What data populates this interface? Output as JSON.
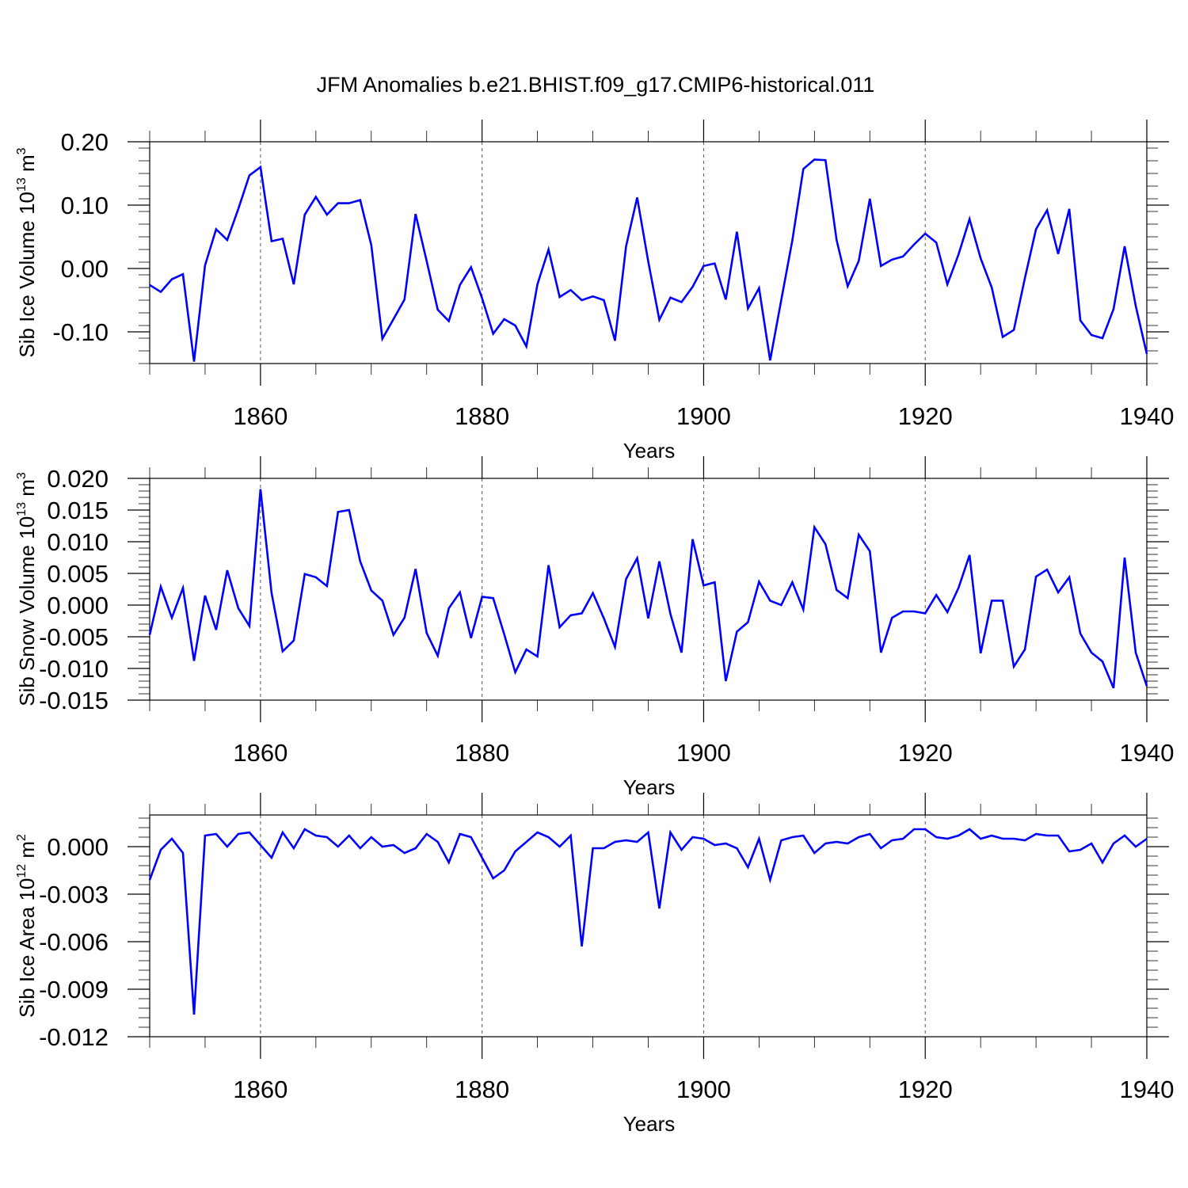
{
  "title": "JFM Anomalies b.e21.BHIST.f09_g17.CMIP6-historical.011",
  "colors": {
    "line": "#0000ff",
    "axis": "#000000",
    "grid": "#555555"
  },
  "chart_data": [
    {
      "type": "line",
      "title": "JFM Anomalies b.e21.BHIST.f09_g17.CMIP6-historical.011",
      "xlabel": "Years",
      "ylabel": "Sib Ice Volume 10",
      "ylabel_exp": "13",
      "ylabel_unit": "m",
      "ylabel_unit_exp": "3",
      "xlim": [
        1850,
        1940
      ],
      "ylim": [
        -0.15,
        0.2
      ],
      "yticks": [
        0.2,
        0.1,
        0.0,
        -0.1
      ],
      "ytick_labels": [
        "0.20",
        "0.10",
        "0.00",
        "-0.10"
      ],
      "xticks": [
        1860,
        1880,
        1900,
        1920,
        1940
      ],
      "xtick_labels": [
        "1860",
        "1880",
        "1900",
        "1920",
        "1940"
      ],
      "grid_x": [
        1860,
        1880,
        1900,
        1920
      ],
      "series": [
        {
          "name": "Sib Ice Volume",
          "x": [
            1850,
            1851,
            1852,
            1853,
            1854,
            1855,
            1856,
            1857,
            1858,
            1859,
            1860,
            1861,
            1862,
            1863,
            1864,
            1865,
            1866,
            1867,
            1868,
            1869,
            1870,
            1871,
            1872,
            1873,
            1874,
            1875,
            1876,
            1877,
            1878,
            1879,
            1880,
            1881,
            1882,
            1883,
            1884,
            1885,
            1886,
            1887,
            1888,
            1889,
            1890,
            1891,
            1892,
            1893,
            1894,
            1895,
            1896,
            1897,
            1898,
            1899,
            1900,
            1901,
            1902,
            1903,
            1904,
            1905,
            1906,
            1907,
            1908,
            1909,
            1910,
            1911,
            1912,
            1913,
            1914,
            1915,
            1916,
            1917,
            1918,
            1919,
            1920,
            1921,
            1922,
            1923,
            1924,
            1925,
            1926,
            1927,
            1928,
            1929,
            1930,
            1931,
            1932,
            1933,
            1934,
            1935,
            1936,
            1937,
            1938,
            1939,
            1940
          ],
          "values": [
            -0.026,
            -0.037,
            -0.017,
            -0.009,
            -0.147,
            0.005,
            0.062,
            0.045,
            0.094,
            0.147,
            0.16,
            0.043,
            0.047,
            -0.025,
            0.085,
            0.113,
            0.085,
            0.103,
            0.103,
            0.108,
            0.037,
            -0.111,
            -0.08,
            -0.049,
            0.086,
            0.012,
            -0.065,
            -0.083,
            -0.026,
            0.002,
            -0.047,
            -0.103,
            -0.08,
            -0.09,
            -0.123,
            -0.025,
            0.03,
            -0.045,
            -0.034,
            -0.05,
            -0.044,
            -0.05,
            -0.114,
            0.035,
            0.112,
            0.011,
            -0.081,
            -0.046,
            -0.053,
            -0.029,
            0.004,
            0.008,
            -0.049,
            0.058,
            -0.063,
            -0.031,
            -0.145,
            -0.05,
            0.044,
            0.157,
            0.172,
            0.171,
            0.045,
            -0.028,
            0.012,
            0.11,
            0.004,
            0.014,
            0.019,
            0.038,
            0.055,
            0.041,
            -0.025,
            0.022,
            0.078,
            0.016,
            -0.03,
            -0.108,
            -0.097,
            -0.015,
            0.062,
            0.092,
            0.023,
            0.094,
            -0.082,
            -0.105,
            -0.11,
            -0.064,
            0.035,
            -0.059,
            -0.135
          ]
        }
      ]
    },
    {
      "type": "line",
      "xlabel": "Years",
      "ylabel": "Sib Snow Volume 10",
      "ylabel_exp": "13",
      "ylabel_unit": "m",
      "ylabel_unit_exp": "3",
      "xlim": [
        1850,
        1940
      ],
      "ylim": [
        -0.015,
        0.02
      ],
      "yticks": [
        0.02,
        0.015,
        0.01,
        0.005,
        0.0,
        -0.005,
        -0.01,
        -0.015
      ],
      "ytick_labels": [
        "0.020",
        "0.015",
        "0.010",
        "0.005",
        "0.000",
        "-0.005",
        "-0.010",
        "-0.015"
      ],
      "xticks": [
        1860,
        1880,
        1900,
        1920,
        1940
      ],
      "xtick_labels": [
        "1860",
        "1880",
        "1900",
        "1920",
        "1940"
      ],
      "grid_x": [
        1860,
        1880,
        1900,
        1920
      ],
      "series": [
        {
          "name": "Sib Snow Volume",
          "x": [
            1850,
            1851,
            1852,
            1853,
            1854,
            1855,
            1856,
            1857,
            1858,
            1859,
            1860,
            1861,
            1862,
            1863,
            1864,
            1865,
            1866,
            1867,
            1868,
            1869,
            1870,
            1871,
            1872,
            1873,
            1874,
            1875,
            1876,
            1877,
            1878,
            1879,
            1880,
            1881,
            1882,
            1883,
            1884,
            1885,
            1886,
            1887,
            1888,
            1889,
            1890,
            1891,
            1892,
            1893,
            1894,
            1895,
            1896,
            1897,
            1898,
            1899,
            1900,
            1901,
            1902,
            1903,
            1904,
            1905,
            1906,
            1907,
            1908,
            1909,
            1910,
            1911,
            1912,
            1913,
            1914,
            1915,
            1916,
            1917,
            1918,
            1919,
            1920,
            1921,
            1922,
            1923,
            1924,
            1925,
            1926,
            1927,
            1928,
            1929,
            1930,
            1931,
            1932,
            1933,
            1934,
            1935,
            1936,
            1937,
            1938,
            1939,
            1940
          ],
          "values": [
            -0.0047,
            0.0029,
            -0.002,
            0.0027,
            -0.0088,
            0.0015,
            -0.0039,
            0.0055,
            -0.0005,
            -0.0033,
            0.0183,
            0.0019,
            -0.0073,
            -0.0056,
            0.0049,
            0.0044,
            0.003,
            0.0147,
            0.015,
            0.0069,
            0.0023,
            0.0007,
            -0.0047,
            -0.002,
            0.0057,
            -0.0044,
            -0.008,
            -0.0005,
            0.002,
            -0.0052,
            0.0013,
            0.0011,
            -0.0046,
            -0.0106,
            -0.007,
            -0.0081,
            0.0063,
            -0.0035,
            -0.0016,
            -0.0013,
            0.0019,
            -0.0021,
            -0.0066,
            0.0041,
            0.0074,
            -0.0021,
            0.0069,
            -0.0014,
            -0.0075,
            0.0104,
            0.0031,
            0.0036,
            -0.012,
            -0.0042,
            -0.0027,
            0.0037,
            0.0007,
            0.0,
            0.0036,
            -0.0007,
            0.0123,
            0.0096,
            0.0024,
            0.0011,
            0.0111,
            0.0085,
            -0.0075,
            -0.002,
            -0.001,
            -0.001,
            -0.0013,
            0.0016,
            -0.0011,
            0.0027,
            0.0079,
            -0.0076,
            0.0007,
            0.0007,
            -0.0097,
            -0.007,
            0.0045,
            0.0056,
            0.002,
            0.0044,
            -0.0045,
            -0.0075,
            -0.0089,
            -0.0131,
            0.0075,
            -0.0075,
            -0.0128
          ]
        }
      ]
    },
    {
      "type": "line",
      "xlabel": "Years",
      "ylabel": "Sib Ice Area 10",
      "ylabel_exp": "12",
      "ylabel_unit": "m",
      "ylabel_unit_exp": "2",
      "xlim": [
        1850,
        1940
      ],
      "ylim": [
        -0.012,
        0.002
      ],
      "yticks": [
        0.0,
        -0.003,
        -0.006,
        -0.009,
        -0.012
      ],
      "ytick_labels": [
        "0.000",
        "-0.003",
        "-0.006",
        "-0.009",
        "-0.012"
      ],
      "xticks": [
        1860,
        1880,
        1900,
        1920,
        1940
      ],
      "xtick_labels": [
        "1860",
        "1880",
        "1900",
        "1920",
        "1940"
      ],
      "grid_x": [
        1860,
        1880,
        1900,
        1920
      ],
      "series": [
        {
          "name": "Sib Ice Area",
          "x": [
            1850,
            1851,
            1852,
            1853,
            1854,
            1855,
            1856,
            1857,
            1858,
            1859,
            1860,
            1861,
            1862,
            1863,
            1864,
            1865,
            1866,
            1867,
            1868,
            1869,
            1870,
            1871,
            1872,
            1873,
            1874,
            1875,
            1876,
            1877,
            1878,
            1879,
            1880,
            1881,
            1882,
            1883,
            1884,
            1885,
            1886,
            1887,
            1888,
            1889,
            1890,
            1891,
            1892,
            1893,
            1894,
            1895,
            1896,
            1897,
            1898,
            1899,
            1900,
            1901,
            1902,
            1903,
            1904,
            1905,
            1906,
            1907,
            1908,
            1909,
            1910,
            1911,
            1912,
            1913,
            1914,
            1915,
            1916,
            1917,
            1918,
            1919,
            1920,
            1921,
            1922,
            1923,
            1924,
            1925,
            1926,
            1927,
            1928,
            1929,
            1930,
            1931,
            1932,
            1933,
            1934,
            1935,
            1936,
            1937,
            1938,
            1939,
            1940
          ],
          "values": [
            -0.0021,
            -0.0002,
            0.0005,
            -0.0004,
            -0.0106,
            0.0007,
            0.0008,
            0.0,
            0.0008,
            0.0009,
            0.0001,
            -0.0007,
            0.0009,
            -0.0001,
            0.0011,
            0.0007,
            0.0006,
            0.0,
            0.0007,
            -0.0001,
            0.0006,
            0.0,
            0.0001,
            -0.0004,
            -0.0001,
            0.0008,
            0.0003,
            -0.001,
            0.0008,
            0.0006,
            -0.0007,
            -0.002,
            -0.0015,
            -0.0003,
            0.0003,
            0.0009,
            0.0006,
            0.0,
            0.0007,
            -0.0063,
            -0.0001,
            -0.0001,
            0.0003,
            0.0004,
            0.0003,
            0.0009,
            -0.0039,
            0.0009,
            -0.0002,
            0.0006,
            0.0005,
            0.0001,
            0.0002,
            -0.0001,
            -0.0013,
            0.0005,
            -0.0021,
            0.0004,
            0.0006,
            0.0007,
            -0.0004,
            0.0002,
            0.0003,
            0.0002,
            0.0006,
            0.0008,
            -0.0001,
            0.0004,
            0.0005,
            0.0011,
            0.0011,
            0.0006,
            0.0005,
            0.0007,
            0.0011,
            0.0005,
            0.0007,
            0.0005,
            0.0005,
            0.0004,
            0.0008,
            0.0007,
            0.0007,
            -0.0003,
            -0.0002,
            0.0002,
            -0.001,
            0.0002,
            0.0007,
            0.0,
            0.0005
          ]
        }
      ]
    }
  ]
}
